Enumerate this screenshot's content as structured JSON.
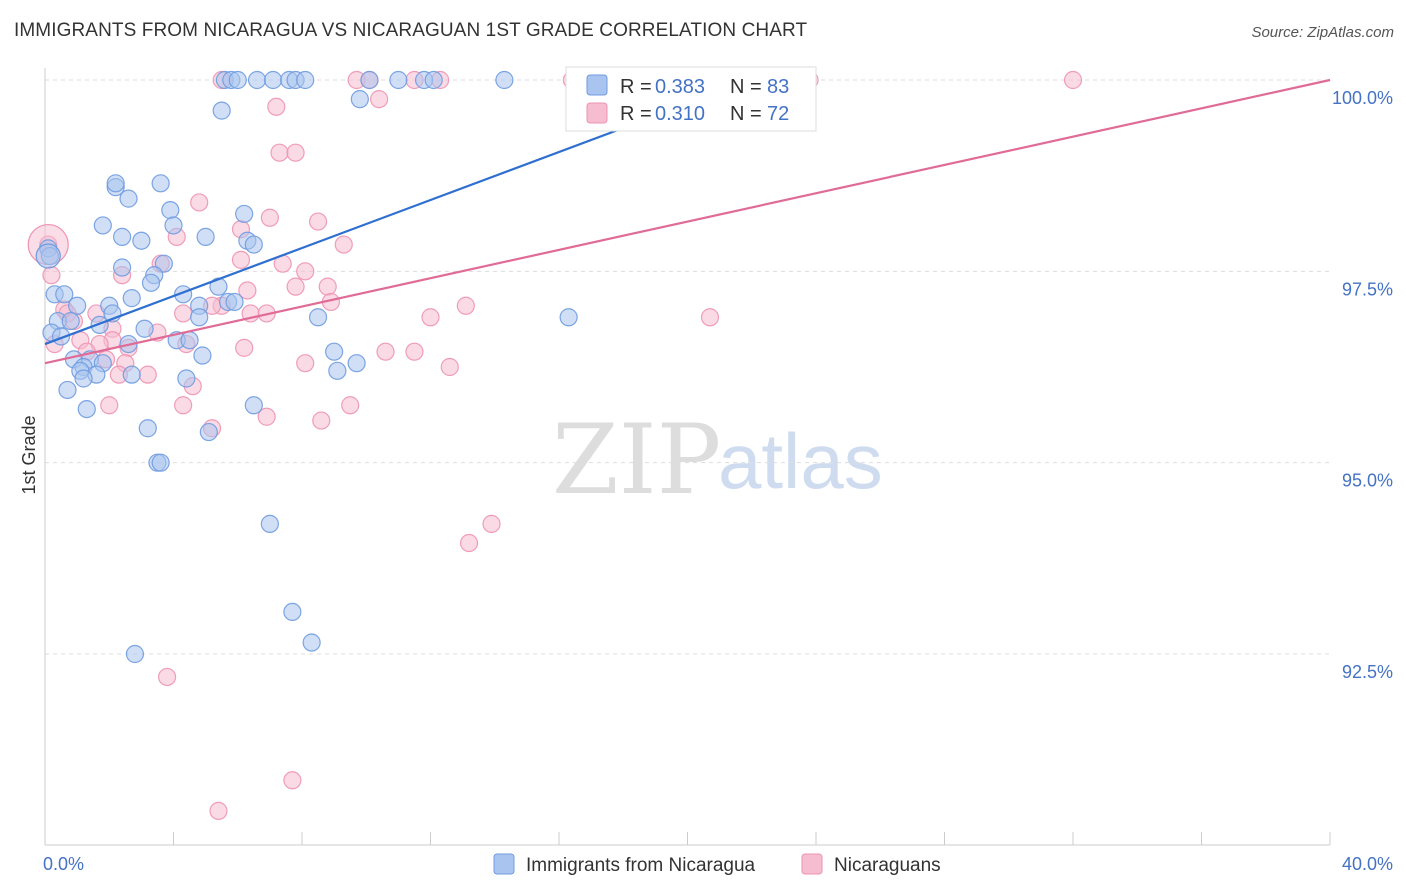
{
  "header": {
    "title": "IMMIGRANTS FROM NICARAGUA VS NICARAGUAN 1ST GRADE CORRELATION CHART",
    "source": "Source: ZipAtlas.com"
  },
  "watermark": {
    "zip": "ZIP",
    "atlas": "atlas"
  },
  "colors": {
    "blue_fill": "#a9c4ee",
    "blue_stroke": "#6f9be0",
    "blue_line": "#2f6fd0",
    "pink_fill": "#f6bcd0",
    "pink_stroke": "#ee93b3",
    "pink_line": "#e06b96",
    "tick_label": "#4472c4",
    "grid": "#dddddd"
  },
  "legend_top": {
    "rows": [
      {
        "r_label": "R =",
        "r_value": "0.383",
        "n_label": "N =",
        "n_value": "83",
        "series": "blue"
      },
      {
        "r_label": "R =",
        "r_value": "0.310",
        "n_label": "N =",
        "n_value": "72",
        "series": "pink"
      }
    ]
  },
  "legend_bottom": {
    "items": [
      {
        "label": "Immigrants from Nicaragua",
        "series": "blue"
      },
      {
        "label": "Nicaraguans",
        "series": "pink"
      }
    ]
  },
  "chart_data": {
    "type": "scatter",
    "title": "IMMIGRANTS FROM NICARAGUA VS NICARAGUAN 1ST GRADE CORRELATION CHART",
    "xlabel": "",
    "ylabel": "1st Grade",
    "xlim": [
      0,
      40
    ],
    "ylim": [
      90.3,
      100.2
    ],
    "x_tick_labels": [
      "0.0%",
      "40.0%"
    ],
    "y_ticks": [
      {
        "value": 100.0,
        "label": "100.0%"
      },
      {
        "value": 97.5,
        "label": "97.5%"
      },
      {
        "value": 95.0,
        "label": "95.0%"
      },
      {
        "value": 92.5,
        "label": "92.5%"
      }
    ],
    "x_minor_ticks": [
      4,
      8,
      12,
      16,
      20,
      24,
      28,
      32,
      36,
      40
    ],
    "series": [
      {
        "name": "Immigrants from Nicaragua",
        "color": "blue",
        "R": 0.383,
        "N": 83,
        "trend": {
          "x0": 0.0,
          "y0": 96.55,
          "x1": 22.0,
          "y1": 100.0
        },
        "points": [
          [
            5.6,
            100.0
          ],
          [
            5.8,
            100.0
          ],
          [
            6.0,
            100.0
          ],
          [
            6.6,
            100.0
          ],
          [
            7.1,
            100.0
          ],
          [
            7.6,
            100.0
          ],
          [
            7.8,
            100.0
          ],
          [
            8.1,
            100.0
          ],
          [
            10.1,
            100.0
          ],
          [
            11.0,
            100.0
          ],
          [
            11.8,
            100.0
          ],
          [
            12.1,
            100.0
          ],
          [
            14.3,
            100.0
          ],
          [
            17.8,
            100.0
          ],
          [
            21.0,
            100.0
          ],
          [
            5.5,
            99.6
          ],
          [
            9.8,
            99.75
          ],
          [
            2.2,
            98.6
          ],
          [
            2.2,
            98.65
          ],
          [
            3.6,
            98.65
          ],
          [
            2.6,
            98.45
          ],
          [
            3.9,
            98.3
          ],
          [
            6.2,
            98.25
          ],
          [
            1.8,
            98.1
          ],
          [
            4.0,
            98.1
          ],
          [
            2.4,
            97.95
          ],
          [
            5.0,
            97.95
          ],
          [
            3.0,
            97.9
          ],
          [
            6.3,
            97.9
          ],
          [
            6.5,
            97.85
          ],
          [
            0.1,
            97.8
          ],
          [
            3.7,
            97.6
          ],
          [
            2.4,
            97.55
          ],
          [
            3.4,
            97.45
          ],
          [
            3.3,
            97.35
          ],
          [
            5.4,
            97.3
          ],
          [
            0.3,
            97.2
          ],
          [
            0.6,
            97.2
          ],
          [
            4.3,
            97.2
          ],
          [
            5.7,
            97.1
          ],
          [
            2.7,
            97.15
          ],
          [
            5.9,
            97.1
          ],
          [
            2.0,
            97.05
          ],
          [
            1.0,
            97.05
          ],
          [
            4.8,
            97.05
          ],
          [
            2.1,
            96.95
          ],
          [
            4.8,
            96.9
          ],
          [
            8.5,
            96.9
          ],
          [
            16.3,
            96.9
          ],
          [
            0.4,
            96.85
          ],
          [
            0.8,
            96.85
          ],
          [
            1.7,
            96.8
          ],
          [
            3.1,
            96.75
          ],
          [
            0.2,
            96.7
          ],
          [
            0.5,
            96.65
          ],
          [
            4.1,
            96.6
          ],
          [
            4.5,
            96.6
          ],
          [
            2.6,
            96.55
          ],
          [
            9.0,
            96.45
          ],
          [
            4.9,
            96.4
          ],
          [
            0.9,
            96.35
          ],
          [
            1.4,
            96.35
          ],
          [
            1.8,
            96.3
          ],
          [
            1.2,
            96.25
          ],
          [
            9.7,
            96.3
          ],
          [
            1.1,
            96.2
          ],
          [
            9.1,
            96.2
          ],
          [
            2.7,
            96.15
          ],
          [
            1.6,
            96.15
          ],
          [
            1.2,
            96.1
          ],
          [
            4.4,
            96.1
          ],
          [
            0.7,
            95.95
          ],
          [
            6.5,
            95.75
          ],
          [
            1.3,
            95.7
          ],
          [
            3.2,
            95.45
          ],
          [
            5.1,
            95.4
          ],
          [
            3.5,
            95.0
          ],
          [
            3.6,
            95.0
          ],
          [
            7.0,
            94.2
          ],
          [
            7.7,
            93.05
          ],
          [
            8.3,
            92.65
          ],
          [
            2.8,
            92.5
          ],
          [
            0.15,
            97.7
          ]
        ]
      },
      {
        "name": "Nicaraguans",
        "color": "pink",
        "R": 0.31,
        "N": 72,
        "trend": {
          "x0": 0.0,
          "y0": 96.3,
          "x1": 40.0,
          "y1": 100.0
        },
        "points": [
          [
            5.5,
            100.0
          ],
          [
            9.7,
            100.0
          ],
          [
            10.1,
            100.0
          ],
          [
            11.5,
            100.0
          ],
          [
            12.3,
            100.0
          ],
          [
            16.4,
            100.0
          ],
          [
            21.2,
            100.0
          ],
          [
            23.8,
            100.0
          ],
          [
            32.0,
            100.0
          ],
          [
            7.2,
            99.65
          ],
          [
            10.4,
            99.75
          ],
          [
            7.3,
            99.05
          ],
          [
            7.8,
            99.05
          ],
          [
            4.8,
            98.4
          ],
          [
            7.0,
            98.2
          ],
          [
            8.5,
            98.15
          ],
          [
            6.1,
            98.05
          ],
          [
            4.1,
            97.95
          ],
          [
            9.3,
            97.85
          ],
          [
            6.1,
            97.65
          ],
          [
            3.6,
            97.6
          ],
          [
            7.4,
            97.6
          ],
          [
            8.1,
            97.5
          ],
          [
            2.4,
            97.45
          ],
          [
            0.2,
            97.45
          ],
          [
            7.8,
            97.3
          ],
          [
            8.8,
            97.3
          ],
          [
            6.3,
            97.25
          ],
          [
            8.9,
            97.1
          ],
          [
            5.5,
            97.05
          ],
          [
            5.2,
            97.05
          ],
          [
            13.1,
            97.05
          ],
          [
            0.6,
            97.0
          ],
          [
            0.7,
            96.95
          ],
          [
            1.6,
            96.95
          ],
          [
            4.3,
            96.95
          ],
          [
            6.4,
            96.95
          ],
          [
            6.9,
            96.95
          ],
          [
            12.0,
            96.9
          ],
          [
            20.7,
            96.9
          ],
          [
            0.9,
            96.85
          ],
          [
            2.1,
            96.75
          ],
          [
            3.5,
            96.7
          ],
          [
            2.1,
            96.6
          ],
          [
            1.1,
            96.6
          ],
          [
            0.3,
            96.55
          ],
          [
            4.4,
            96.55
          ],
          [
            6.2,
            96.5
          ],
          [
            1.7,
            96.55
          ],
          [
            2.6,
            96.5
          ],
          [
            1.3,
            96.45
          ],
          [
            10.6,
            96.45
          ],
          [
            11.5,
            96.45
          ],
          [
            1.9,
            96.35
          ],
          [
            2.5,
            96.3
          ],
          [
            8.1,
            96.3
          ],
          [
            12.6,
            96.25
          ],
          [
            3.2,
            96.15
          ],
          [
            2.3,
            96.15
          ],
          [
            4.6,
            96.0
          ],
          [
            2.0,
            95.75
          ],
          [
            4.3,
            95.75
          ],
          [
            9.5,
            95.75
          ],
          [
            6.9,
            95.6
          ],
          [
            8.6,
            95.55
          ],
          [
            5.2,
            95.45
          ],
          [
            13.9,
            94.2
          ],
          [
            13.2,
            93.95
          ],
          [
            3.8,
            92.2
          ],
          [
            7.7,
            90.85
          ],
          [
            5.4,
            90.45
          ],
          [
            0.1,
            97.85
          ]
        ]
      }
    ]
  }
}
